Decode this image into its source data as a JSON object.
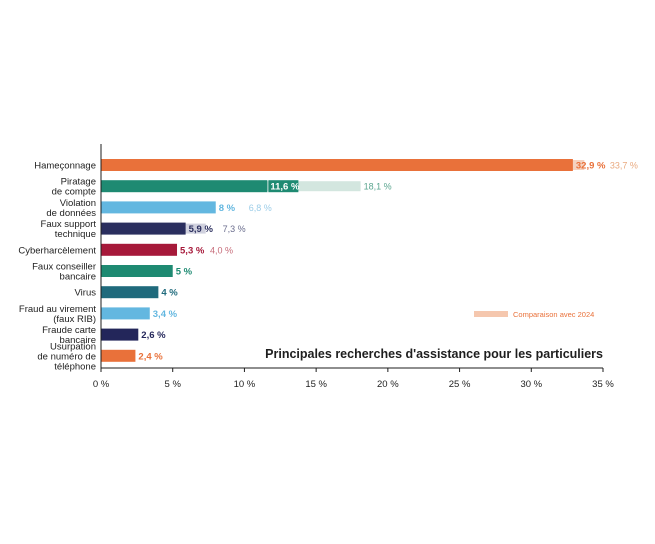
{
  "chart_data": {
    "type": "bar",
    "orientation": "horizontal",
    "title": "Principales recherches d'assistance pour les particuliers",
    "legend": {
      "label": "Comparaison avec 2024",
      "position": "bottom-right"
    },
    "xlim": [
      0,
      35
    ],
    "x_ticks": [
      0,
      5,
      10,
      15,
      20,
      25,
      30,
      35
    ],
    "x_tick_labels": [
      "0 %",
      "5 %",
      "10 %",
      "15 %",
      "20 %",
      "25 %",
      "30 %",
      "35 %"
    ],
    "grid": false,
    "categories": [
      {
        "lines": [
          "Hameçonnage"
        ],
        "value": 32.9,
        "value_label": "32,9 %",
        "prev": 33.7,
        "prev_label": "33,7 %",
        "color": "#e9713a",
        "prev_color": "#f5d2bf",
        "label_color": "#e9713a",
        "prev_label_color": "#e9a97f"
      },
      {
        "lines": [
          "Piratage",
          "de compte"
        ],
        "value": 11.6,
        "value_label": "11,6 %",
        "prev": 18.1,
        "prev_label": "18,1 %",
        "color": "#1e8a72",
        "prev_color": "#d3e6df",
        "label_color": "#ffffff",
        "prev_label_color": "#5aa58f"
      },
      {
        "lines": [
          "Violation",
          "de données"
        ],
        "value": 8,
        "value_label": "8 %",
        "prev": 6.8,
        "prev_label": "6,8 %",
        "color": "#63b7e0",
        "prev_color": "#b8dcef",
        "label_color": "#63b7e0",
        "prev_label_color": "#9ccde8"
      },
      {
        "lines": [
          "Faux support",
          "technique"
        ],
        "value": 5.9,
        "value_label": "5,9 %",
        "prev": 7.3,
        "prev_label": "7,3 %",
        "color": "#2a2e5e",
        "prev_color": "#d0d1de",
        "label_color": "#2a2e5e",
        "prev_label_color": "#6b6e8e"
      },
      {
        "lines": [
          "Cyberharcèlement"
        ],
        "value": 5.3,
        "value_label": "5,3 %",
        "prev": 4.0,
        "prev_label": "4,0 %",
        "color": "#a6193a",
        "prev_color": "#d9838f",
        "label_color": "#a6193a",
        "prev_label_color": "#c66a78"
      },
      {
        "lines": [
          "Faux conseiller",
          "bancaire"
        ],
        "value": 5,
        "value_label": "5 %",
        "prev": null,
        "prev_label": "",
        "color": "#1e8a72",
        "prev_color": "",
        "label_color": "#1e8a72",
        "prev_label_color": ""
      },
      {
        "lines": [
          "Virus"
        ],
        "value": 4,
        "value_label": "4 %",
        "prev": null,
        "prev_label": "",
        "color": "#1f6a7c",
        "prev_color": "",
        "label_color": "#1f6a7c",
        "prev_label_color": ""
      },
      {
        "lines": [
          "Fraud au virement",
          "(faux RIB)"
        ],
        "value": 3.4,
        "value_label": "3,4 %",
        "prev": null,
        "prev_label": "",
        "color": "#63b7e0",
        "prev_color": "",
        "label_color": "#63b7e0",
        "prev_label_color": ""
      },
      {
        "lines": [
          "Fraude carte",
          "bancaire"
        ],
        "value": 2.6,
        "value_label": "2,6 %",
        "prev": null,
        "prev_label": "",
        "color": "#23265a",
        "prev_color": "",
        "label_color": "#23265a",
        "prev_label_color": ""
      },
      {
        "lines": [
          "Usurpation",
          "de numéro de",
          "téléphone"
        ],
        "value": 2.4,
        "value_label": "2,4 %",
        "prev": null,
        "prev_label": "",
        "color": "#e9713a",
        "prev_color": "",
        "label_color": "#e9713a",
        "prev_label_color": ""
      }
    ],
    "legend_color": "#f5c7ae"
  }
}
